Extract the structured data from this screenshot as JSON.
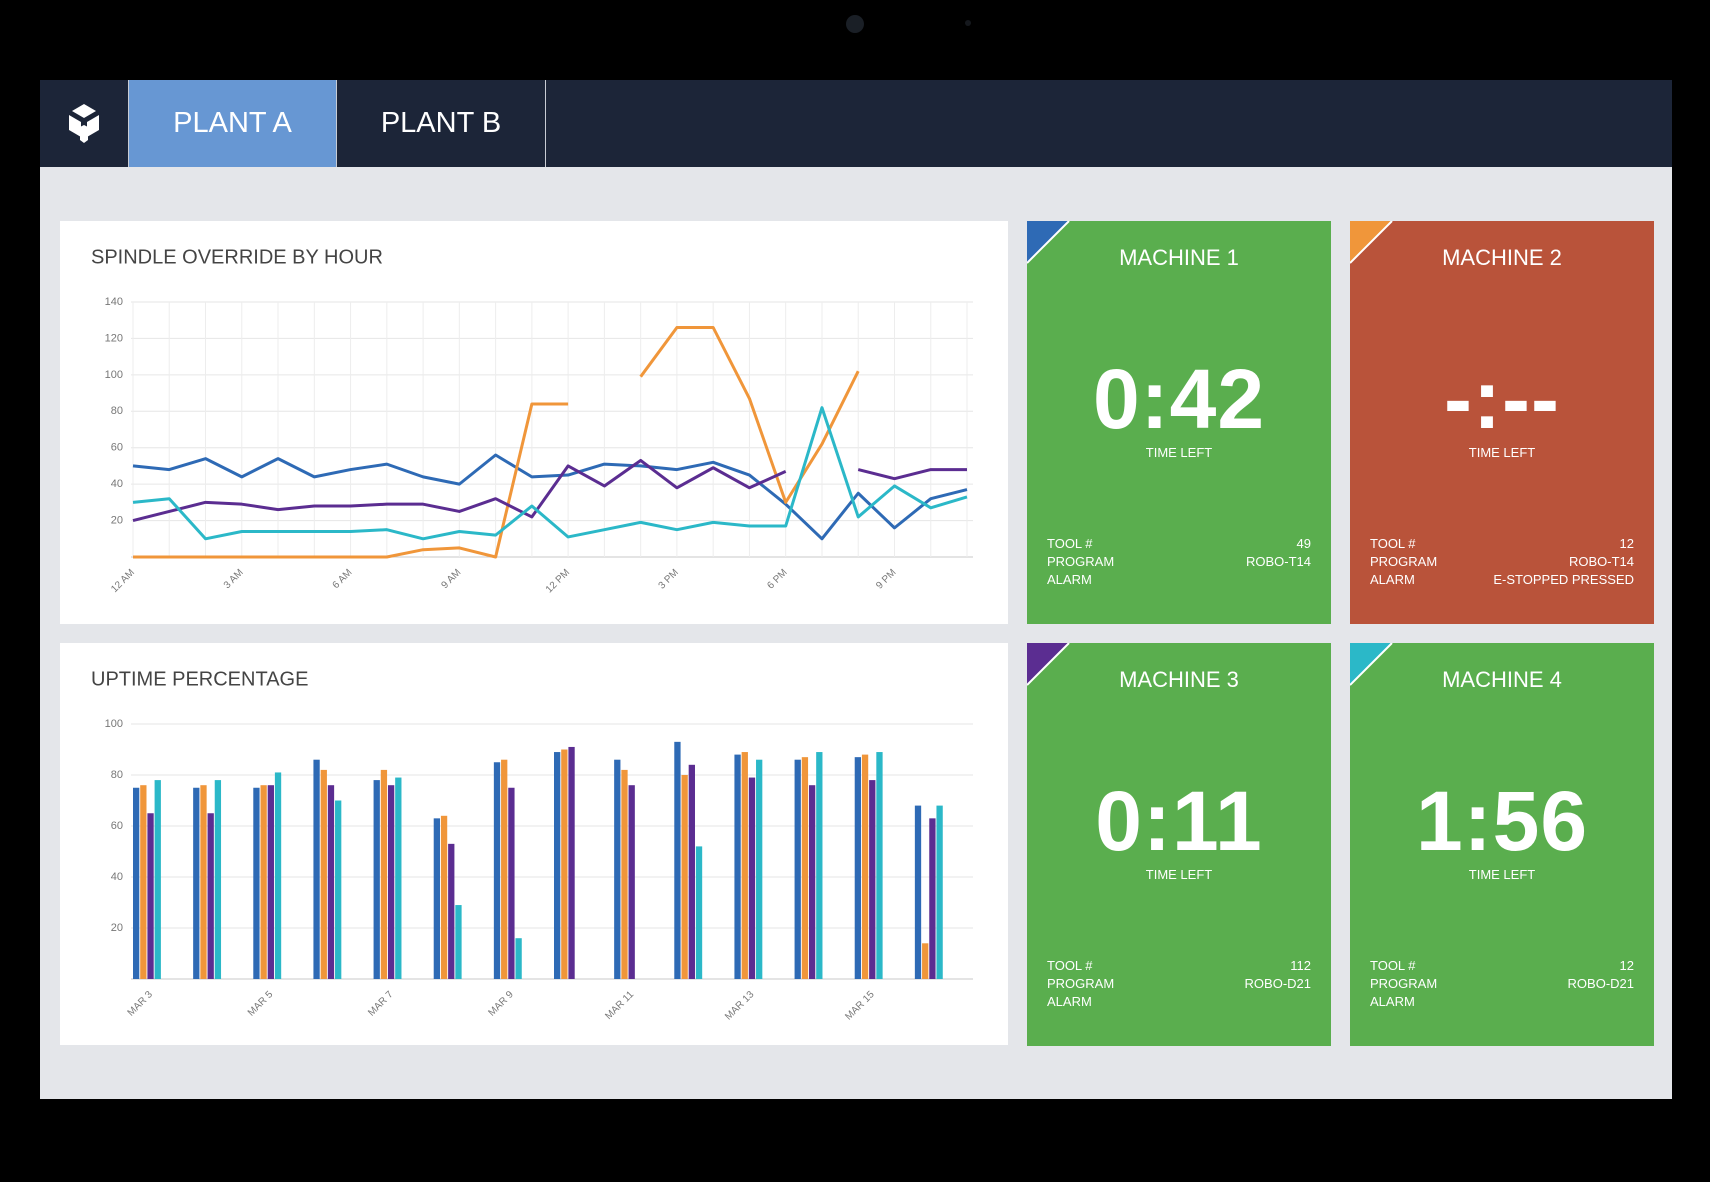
{
  "tabs": [
    "PLANT A",
    "PLANT B"
  ],
  "chart_data": [
    {
      "type": "line",
      "title": "SPINDLE OVERRIDE BY HOUR",
      "categories": [
        "12 AM",
        null,
        null,
        "3 AM",
        null,
        null,
        "6 AM",
        null,
        null,
        "9 AM",
        null,
        null,
        "12 PM",
        null,
        null,
        "3 PM",
        null,
        null,
        "6 PM",
        null,
        null,
        "9 PM",
        null,
        null
      ],
      "ylim": [
        0,
        140
      ],
      "yticks": [
        20,
        40,
        60,
        80,
        100,
        120,
        140
      ],
      "grid": true,
      "series": [
        {
          "color": "#2e6ab5",
          "values": [
            50,
            48,
            54,
            44,
            54,
            44,
            48,
            51,
            44,
            40,
            56,
            44,
            45,
            51,
            50,
            48,
            52,
            45,
            29,
            10,
            35,
            16,
            32,
            37
          ]
        },
        {
          "color": "#f0963a",
          "values": [
            0,
            0,
            0,
            0,
            0,
            0,
            0,
            0,
            4,
            5,
            0,
            84,
            84,
            null,
            99,
            126,
            126,
            87,
            30,
            62,
            102,
            null,
            null,
            null
          ]
        },
        {
          "color": "#5b2d91",
          "values": [
            20,
            25,
            30,
            29,
            26,
            28,
            28,
            29,
            29,
            25,
            32,
            22,
            50,
            39,
            53,
            38,
            49,
            38,
            47,
            null,
            48,
            43,
            48,
            48
          ]
        },
        {
          "color": "#2bb8c8",
          "values": [
            30,
            32,
            10,
            14,
            14,
            14,
            14,
            15,
            10,
            14,
            12,
            28,
            11,
            15,
            19,
            15,
            19,
            17,
            17,
            82,
            22,
            39,
            27,
            33
          ]
        }
      ]
    },
    {
      "type": "bar",
      "title": "UPTIME PERCENTAGE",
      "categories": [
        "MAR 3",
        null,
        "MAR 5",
        null,
        "MAR 7",
        null,
        "MAR 9",
        null,
        "MAR 11",
        null,
        "MAR 13",
        null,
        "MAR 15",
        null
      ],
      "ylim": [
        0,
        100
      ],
      "yticks": [
        20,
        40,
        60,
        80,
        100
      ],
      "grid": true,
      "series": [
        {
          "color": "#2e6ab5",
          "values": [
            75,
            75,
            75,
            86,
            78,
            63,
            85,
            89,
            86,
            93,
            88,
            86,
            87,
            68
          ]
        },
        {
          "color": "#f0963a",
          "values": [
            76,
            76,
            76,
            82,
            82,
            64,
            86,
            90,
            82,
            80,
            89,
            87,
            88,
            14
          ]
        },
        {
          "color": "#5b2d91",
          "values": [
            65,
            65,
            76,
            76,
            76,
            53,
            75,
            91,
            76,
            84,
            79,
            76,
            78,
            63
          ]
        },
        {
          "color": "#2bb8c8",
          "values": [
            78,
            78,
            81,
            70,
            79,
            29,
            16,
            null,
            null,
            52,
            86,
            89,
            89,
            68
          ]
        }
      ]
    }
  ],
  "time_label": "TIME LEFT",
  "field_labels": [
    "TOOL #",
    "PROGRAM",
    "ALARM"
  ],
  "machines": [
    {
      "name": "MACHINE 1",
      "time": "0:42",
      "tool": 49,
      "program": "ROBO-T14",
      "color": "#5aae4e",
      "accent": "#2e6ab5"
    },
    {
      "name": "MACHINE 2",
      "time": "-:--",
      "tool": 12,
      "program": "ROBO-T14",
      "alarm": "E-STOPPED PRESSED",
      "color": "#b9533a",
      "accent": "#f0963a"
    },
    {
      "name": "MACHINE 3",
      "time": "0:11",
      "tool": 112,
      "program": "ROBO-D21",
      "color": "#5aae4e",
      "accent": "#5b2d91"
    },
    {
      "name": "MACHINE 4",
      "time": "1:56",
      "tool": 12,
      "program": "ROBO-D21",
      "color": "#5aae4e",
      "accent": "#2bb8c8"
    }
  ]
}
